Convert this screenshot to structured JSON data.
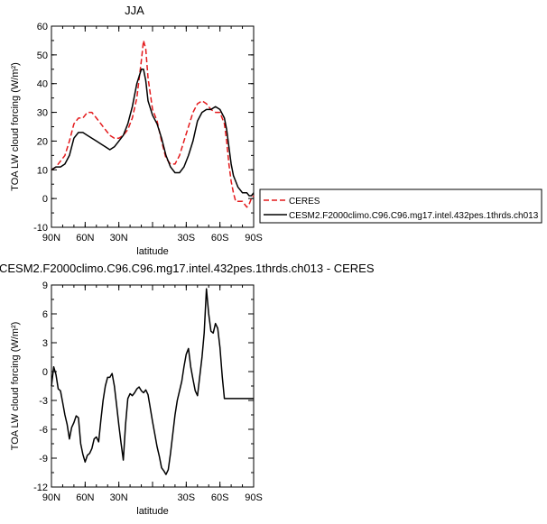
{
  "figure": {
    "panel_top_title": "JJA",
    "panel_bottom_title": "CESM2.F2000climo.C96.C96.mg17.intel.432pes.1thrds.ch013 - CERES"
  },
  "colors": {
    "ceres": "#e41a1c",
    "model": "#000000"
  },
  "chart_data": [
    {
      "type": "line",
      "title": "JJA",
      "xlabel": "latitude",
      "ylabel": "TOA LW cloud forcing (W/m²)",
      "x_ticks": [
        90,
        60,
        30,
        0,
        -30,
        -60,
        -90
      ],
      "x_tick_labels": [
        "90N",
        "60N",
        "30N",
        "",
        "30S",
        "60S",
        "90S"
      ],
      "xlim": [
        90,
        -90
      ],
      "ylim": [
        -10,
        60
      ],
      "y_ticks": [
        -10,
        0,
        10,
        20,
        30,
        40,
        50,
        60
      ],
      "legend_placement": "right",
      "series": [
        {
          "name": "CERES",
          "style": "dashed",
          "x": [
            90,
            86,
            82,
            78,
            74,
            70,
            66,
            62,
            58,
            54,
            50,
            46,
            42,
            38,
            34,
            30,
            26,
            22,
            18,
            14,
            10,
            8,
            6,
            4,
            0,
            -4,
            -8,
            -12,
            -16,
            -20,
            -24,
            -28,
            -32,
            -36,
            -40,
            -44,
            -48,
            -52,
            -56,
            -60,
            -64,
            -66,
            -68,
            -70,
            -72,
            -74,
            -76,
            -78,
            -80,
            -82,
            -84,
            -86,
            -88,
            -90
          ],
          "y": [
            10,
            11,
            13,
            15,
            20,
            26,
            28,
            28,
            30,
            30,
            28,
            26,
            24,
            22,
            21,
            21,
            22,
            24,
            28,
            35,
            48,
            55,
            52,
            42,
            31,
            27,
            20,
            14,
            12,
            12,
            15,
            20,
            25,
            30,
            33,
            34,
            33,
            31,
            30,
            30,
            26,
            20,
            12,
            6,
            2,
            -1,
            -1,
            -1,
            -1,
            -2,
            -3,
            -2,
            0,
            1
          ]
        },
        {
          "name": "CESM2.F2000climo.C96.C96.mg17.intel.432pes.1thrds.ch013",
          "style": "solid",
          "x": [
            90,
            86,
            82,
            78,
            74,
            70,
            66,
            62,
            58,
            54,
            50,
            46,
            42,
            38,
            34,
            30,
            26,
            22,
            18,
            14,
            10,
            8,
            6,
            4,
            0,
            -4,
            -8,
            -12,
            -16,
            -20,
            -24,
            -28,
            -32,
            -36,
            -40,
            -44,
            -48,
            -52,
            -56,
            -60,
            -64,
            -66,
            -68,
            -70,
            -72,
            -74,
            -76,
            -78,
            -80,
            -82,
            -84,
            -86,
            -88,
            -90
          ],
          "y": [
            10,
            11,
            11,
            12,
            15,
            21,
            23,
            23,
            22,
            21,
            20,
            19,
            18,
            17,
            18,
            20,
            22,
            26,
            32,
            40,
            45,
            45,
            41,
            34,
            29,
            26,
            21,
            15,
            11,
            9,
            9,
            11,
            15,
            20,
            27,
            30,
            31,
            31,
            32,
            31,
            28,
            24,
            18,
            12,
            8,
            6,
            4,
            3,
            2,
            2,
            2,
            1,
            1,
            2
          ]
        }
      ]
    },
    {
      "type": "line",
      "title": "CESM2.F2000climo.C96.C96.mg17.intel.432pes.1thrds.ch013 - CERES",
      "xlabel": "latitude",
      "ylabel": "TOA LW cloud forcing (W/m²)",
      "x_ticks": [
        90,
        60,
        30,
        0,
        -30,
        -60,
        -90
      ],
      "x_tick_labels": [
        "90N",
        "60N",
        "30N",
        "",
        "30S",
        "60S",
        "90S"
      ],
      "xlim": [
        90,
        -90
      ],
      "ylim": [
        -12,
        9
      ],
      "y_ticks": [
        -12,
        -9,
        -6,
        -3,
        0,
        3,
        6,
        9
      ],
      "series": [
        {
          "name": "",
          "style": "solid",
          "x": [
            90,
            88,
            86,
            84,
            82,
            80,
            78,
            76,
            74,
            72,
            70,
            68,
            66,
            64,
            62,
            60,
            58,
            56,
            54,
            52,
            50,
            48,
            46,
            44,
            42,
            40,
            38,
            36,
            34,
            32,
            30,
            28,
            26,
            24,
            22,
            20,
            18,
            16,
            14,
            12,
            10,
            8,
            6,
            4,
            2,
            0,
            -2,
            -4,
            -6,
            -8,
            -10,
            -12,
            -14,
            -16,
            -18,
            -20,
            -22,
            -24,
            -26,
            -28,
            -30,
            -32,
            -34,
            -36,
            -38,
            -40,
            -42,
            -44,
            -46,
            -48,
            -50,
            -52,
            -54,
            -56,
            -58,
            -60,
            -62,
            -64,
            -66,
            -68,
            -70,
            -72,
            -74,
            -76,
            -78,
            -80,
            -82,
            -84,
            -86,
            -88,
            -90
          ],
          "y": [
            -1.5,
            0.5,
            -0.3,
            -1.8,
            -2.0,
            -3.2,
            -4.5,
            -5.5,
            -7.0,
            -5.8,
            -5.3,
            -4.6,
            -4.8,
            -7.5,
            -8.6,
            -9.4,
            -8.7,
            -8.5,
            -8.0,
            -7.0,
            -6.8,
            -7.3,
            -5.0,
            -3.0,
            -1.5,
            -0.6,
            -0.6,
            -0.2,
            -1.5,
            -3.5,
            -5.6,
            -7.5,
            -9.2,
            -5.5,
            -2.8,
            -2.3,
            -2.5,
            -2.2,
            -1.8,
            -1.6,
            -2.0,
            -2.2,
            -1.9,
            -2.4,
            -3.8,
            -5.2,
            -6.5,
            -7.8,
            -8.8,
            -10.0,
            -10.3,
            -10.7,
            -10.2,
            -8.5,
            -6.5,
            -4.5,
            -3.0,
            -2.0,
            -1.0,
            0.5,
            1.8,
            2.4,
            0.5,
            -0.8,
            -2.0,
            -2.5,
            -0.5,
            1.5,
            4.0,
            8.6,
            6.0,
            4.2,
            4.0,
            5.0,
            4.5,
            2.5,
            -0.5,
            -2.8,
            -2.8,
            -2.8,
            -2.8,
            -2.8,
            -2.8,
            -2.8,
            -2.8,
            -2.8,
            -2.8,
            -2.8,
            -2.8,
            -2.8,
            -2.8
          ]
        }
      ]
    }
  ]
}
